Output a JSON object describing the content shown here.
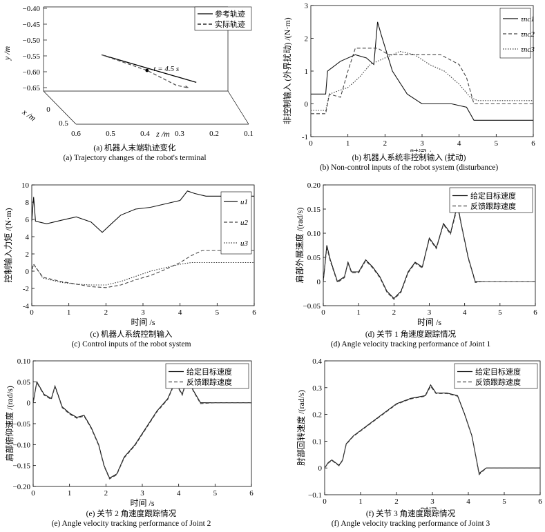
{
  "chart_data": [
    {
      "id": "a",
      "type": "line",
      "title": "",
      "caption_zh": "(a) 机器人末端轨迹变化",
      "caption_en": "(a) Trajectory changes of the robot's terminal",
      "xlabel": "x /m",
      "ylabel": "y /m",
      "zlabel": "z /m",
      "y_ticks": [
        "−0.40",
        "−0.45",
        "−0.50",
        "−0.55",
        "−0.60",
        "−0.65"
      ],
      "z_ticks": [
        "0.6",
        "0.5",
        "0.4",
        "0.3",
        "0.2",
        "0.1"
      ],
      "x_ticks": [
        "0",
        "0.5"
      ],
      "ylim": [
        -0.65,
        -0.4
      ],
      "zlim": [
        0.1,
        0.6
      ],
      "xlim": [
        0,
        0.5
      ],
      "annotation": "t = 4.5 s",
      "series": [
        {
          "name": "参考轨迹",
          "style": "solid",
          "points": [
            [
              0.05,
              -0.54,
              0.52
            ],
            [
              0.18,
              -0.61,
              0.23
            ]
          ]
        },
        {
          "name": "实际轨迹",
          "style": "dashed",
          "points": [
            [
              0.05,
              -0.54,
              0.52
            ],
            [
              0.12,
              -0.58,
              0.38
            ],
            [
              0.17,
              -0.62,
              0.29
            ],
            [
              0.2,
              -0.625,
              0.25
            ],
            [
              0.19,
              -0.62,
              0.26
            ]
          ]
        }
      ],
      "grid": false,
      "legend": "top-right"
    },
    {
      "id": "b",
      "type": "line",
      "title": "",
      "caption_zh": "(b) 机器人系统非控制输入 (扰动)",
      "caption_en": "(b) Non-control inputs of the robot system (disturbance)",
      "xlabel": "时间 /s",
      "ylabel": "非控制输入 (外界扰动) /(N·m)",
      "xlim": [
        0,
        6
      ],
      "ylim": [
        -1,
        3
      ],
      "x_ticks": [
        0,
        1,
        2,
        3,
        4,
        5,
        6
      ],
      "y_ticks": [
        -1,
        0,
        1,
        2,
        3
      ],
      "legend": "top-right",
      "grid": false,
      "series": [
        {
          "name": "τnc1",
          "style": "solid",
          "x": [
            0,
            0.4,
            0.45,
            0.8,
            1.2,
            1.5,
            1.7,
            1.8,
            1.9,
            2.2,
            2.6,
            3.0,
            3.4,
            3.8,
            4.2,
            4.4,
            5.0,
            5.5,
            6.0
          ],
          "y": [
            0.3,
            0.3,
            1.0,
            1.3,
            1.5,
            1.4,
            1.2,
            2.5,
            2.1,
            1.0,
            0.3,
            0.0,
            0.0,
            0.0,
            -0.1,
            -0.5,
            -0.5,
            -0.5,
            -0.5
          ]
        },
        {
          "name": "τnc2",
          "style": "dashed",
          "x": [
            0,
            0.4,
            0.5,
            0.8,
            1.0,
            1.2,
            1.5,
            1.8,
            2.1,
            2.5,
            3.0,
            3.5,
            4.0,
            4.2,
            4.4,
            5.0,
            5.5,
            6.0
          ],
          "y": [
            -0.3,
            -0.3,
            0.3,
            0.2,
            1.0,
            1.7,
            1.7,
            1.7,
            1.5,
            1.5,
            1.5,
            1.5,
            1.2,
            0.8,
            0.0,
            0.0,
            0.0,
            0.0
          ]
        },
        {
          "name": "τnc3",
          "style": "dotted",
          "x": [
            0,
            0.4,
            0.5,
            1.0,
            1.3,
            1.6,
            2.0,
            2.4,
            2.8,
            3.2,
            3.6,
            4.0,
            4.3,
            4.5,
            5.0,
            5.5,
            6.0
          ],
          "y": [
            -0.2,
            -0.2,
            0.3,
            0.5,
            0.8,
            1.2,
            1.4,
            1.6,
            1.5,
            1.2,
            1.0,
            0.6,
            0.2,
            0.1,
            0.1,
            0.1,
            0.1
          ]
        }
      ]
    },
    {
      "id": "c",
      "type": "line",
      "title": "",
      "caption_zh": "(c) 机器人系统控制输入",
      "caption_en": "(c) Control inputs of the robot system",
      "xlabel": "时间 /s",
      "ylabel": "控制输入力矩 /(N·m)",
      "xlim": [
        0,
        6
      ],
      "ylim": [
        -4,
        10
      ],
      "x_ticks": [
        0,
        1,
        2,
        3,
        4,
        5,
        6
      ],
      "y_ticks": [
        -4,
        -2,
        0,
        2,
        4,
        6,
        8,
        10
      ],
      "legend": "right",
      "grid": false,
      "series": [
        {
          "name": "u1",
          "style": "solid",
          "x": [
            0,
            0.05,
            0.1,
            0.4,
            0.8,
            1.2,
            1.6,
            1.9,
            2.1,
            2.4,
            2.8,
            3.2,
            3.6,
            4.0,
            4.2,
            4.4,
            4.7,
            5.0,
            5.5,
            6.0
          ],
          "y": [
            5.8,
            8.6,
            5.8,
            5.5,
            5.9,
            6.3,
            5.7,
            4.5,
            5.3,
            6.5,
            7.2,
            7.4,
            7.8,
            8.2,
            9.3,
            9.0,
            8.7,
            8.7,
            8.7,
            8.7
          ]
        },
        {
          "name": "u2",
          "style": "dashed",
          "x": [
            0,
            0.05,
            0.3,
            0.8,
            1.2,
            1.6,
            2.0,
            2.4,
            2.8,
            3.2,
            3.6,
            4.0,
            4.3,
            4.6,
            5.0,
            5.5,
            6.0
          ],
          "y": [
            0.2,
            0.8,
            -0.7,
            -1.2,
            -1.5,
            -1.8,
            -1.9,
            -1.6,
            -1.0,
            -0.5,
            0.2,
            1.0,
            1.8,
            2.4,
            2.4,
            2.4,
            2.4
          ]
        },
        {
          "name": "u3",
          "style": "dotted",
          "x": [
            0,
            0.05,
            0.3,
            0.8,
            1.2,
            1.6,
            2.0,
            2.4,
            2.8,
            3.2,
            3.6,
            4.0,
            4.3,
            4.6,
            5.0,
            5.5,
            6.0
          ],
          "y": [
            0.0,
            0.8,
            -0.8,
            -1.3,
            -1.5,
            -1.6,
            -1.6,
            -1.2,
            -0.6,
            0.0,
            0.4,
            0.8,
            1.0,
            1.0,
            1.0,
            1.0,
            1.0
          ]
        }
      ]
    },
    {
      "id": "d",
      "type": "line",
      "title": "",
      "caption_zh": "(d) 关节 1 角速度跟踪情况",
      "caption_en": "(d) Angle velocity tracking performance of Joint 1",
      "xlabel": "时间 /s",
      "ylabel": "肩部外展速度 /(rad/s)",
      "xlim": [
        0,
        6
      ],
      "ylim": [
        -0.05,
        0.2
      ],
      "x_ticks": [
        0,
        1,
        2,
        3,
        4,
        5,
        6
      ],
      "y_ticks": [
        "−0.05",
        "0",
        "0.05",
        "0.10",
        "0.15",
        "0.20"
      ],
      "legend": "top-right",
      "grid": false,
      "series": [
        {
          "name": "给定目标速度",
          "style": "solid",
          "x": [
            0,
            0.1,
            0.2,
            0.4,
            0.6,
            0.7,
            0.8,
            1.0,
            1.2,
            1.4,
            1.6,
            1.8,
            2.0,
            2.2,
            2.4,
            2.6,
            2.8,
            3.0,
            3.2,
            3.4,
            3.6,
            3.8,
            3.9,
            4.1,
            4.3,
            4.5,
            5.0,
            6.0
          ],
          "y": [
            0.0,
            0.075,
            0.045,
            0.0,
            0.01,
            0.04,
            0.02,
            0.02,
            0.045,
            0.03,
            0.01,
            -0.02,
            -0.035,
            -0.02,
            0.02,
            0.04,
            0.03,
            0.09,
            0.07,
            0.12,
            0.1,
            0.16,
            0.12,
            0.05,
            0.0,
            0.0,
            0.0,
            0.0
          ]
        },
        {
          "name": "反馈跟踪速度",
          "style": "dashed",
          "x": [
            0,
            0.1,
            0.2,
            0.4,
            0.6,
            0.7,
            0.8,
            1.0,
            1.2,
            1.4,
            1.6,
            1.8,
            2.0,
            2.2,
            2.4,
            2.6,
            2.8,
            3.0,
            3.2,
            3.4,
            3.6,
            3.8,
            3.9,
            4.1,
            4.3,
            4.5,
            5.0,
            6.0
          ],
          "y": [
            0.0,
            0.07,
            0.042,
            -0.002,
            0.008,
            0.038,
            0.018,
            0.018,
            0.043,
            0.028,
            0.008,
            -0.022,
            -0.037,
            -0.022,
            0.018,
            0.038,
            0.028,
            0.088,
            0.068,
            0.118,
            0.098,
            0.155,
            0.118,
            0.048,
            -0.002,
            0.0,
            0.0,
            0.0
          ]
        }
      ]
    },
    {
      "id": "e",
      "type": "line",
      "title": "",
      "caption_zh": "(e) 关节 2 角速度跟踪情况",
      "caption_en": "(e) Angle velocity tracking performance of Joint 2",
      "xlabel": "时间 /s",
      "ylabel": "肩部俯仰速度 /(rad/s)",
      "xlim": [
        0,
        6
      ],
      "ylim": [
        -0.2,
        0.1
      ],
      "x_ticks": [
        0,
        1,
        2,
        3,
        4,
        5,
        6
      ],
      "y_ticks": [
        "−0.20",
        "−0.15",
        "−0.10",
        "−0.05",
        "0",
        "0.05",
        "0.10"
      ],
      "legend": "top-right",
      "grid": false,
      "series": [
        {
          "name": "给定目标速度",
          "style": "solid",
          "x": [
            0,
            0.1,
            0.3,
            0.5,
            0.6,
            0.7,
            0.8,
            1.0,
            1.2,
            1.4,
            1.6,
            1.8,
            1.95,
            2.1,
            2.3,
            2.5,
            2.8,
            3.1,
            3.4,
            3.7,
            3.9,
            4.1,
            4.25,
            4.4,
            4.6,
            5.0,
            6.0
          ],
          "y": [
            0.0,
            0.05,
            0.02,
            0.01,
            0.04,
            0.015,
            -0.01,
            -0.025,
            -0.035,
            -0.03,
            -0.06,
            -0.1,
            -0.15,
            -0.18,
            -0.17,
            -0.13,
            -0.1,
            -0.06,
            -0.02,
            0.01,
            0.05,
            0.02,
            0.065,
            0.03,
            0.0,
            0.0,
            0.0
          ]
        },
        {
          "name": "反馈跟踪速度",
          "style": "dashed",
          "x": [
            0,
            0.1,
            0.3,
            0.5,
            0.6,
            0.7,
            0.8,
            1.0,
            1.2,
            1.4,
            1.6,
            1.8,
            1.95,
            2.1,
            2.3,
            2.5,
            2.8,
            3.1,
            3.4,
            3.7,
            3.9,
            4.1,
            4.25,
            4.4,
            4.6,
            5.0,
            6.0
          ],
          "y": [
            0.0,
            0.048,
            0.018,
            0.008,
            0.038,
            0.013,
            -0.012,
            -0.027,
            -0.037,
            -0.032,
            -0.062,
            -0.102,
            -0.152,
            -0.182,
            -0.172,
            -0.132,
            -0.102,
            -0.062,
            -0.022,
            0.008,
            0.048,
            0.018,
            0.062,
            0.028,
            -0.002,
            0.0,
            0.0
          ]
        }
      ]
    },
    {
      "id": "f",
      "type": "line",
      "title": "",
      "caption_zh": "(f) 关节 3 角速度跟踪情况",
      "caption_en": "(f) Angle velocity tracking performance of Joint 3",
      "xlabel": "时间 /s",
      "ylabel": "肘部回转速度 /(rad/s)",
      "xlim": [
        0,
        6
      ],
      "ylim": [
        -0.1,
        0.4
      ],
      "x_ticks": [
        0,
        1,
        2,
        3,
        4,
        5,
        6
      ],
      "y_ticks": [
        "−0.1",
        "0",
        "0.1",
        "0.2",
        "0.3",
        "0.4"
      ],
      "legend": "top-right",
      "grid": false,
      "series": [
        {
          "name": "给定目标速度",
          "style": "solid",
          "x": [
            0,
            0.1,
            0.2,
            0.4,
            0.5,
            0.6,
            0.8,
            1.0,
            1.3,
            1.6,
            2.0,
            2.4,
            2.8,
            2.95,
            3.1,
            3.4,
            3.7,
            3.9,
            4.1,
            4.2,
            4.3,
            4.5,
            5.0,
            6.0
          ],
          "y": [
            0.0,
            0.02,
            0.03,
            0.01,
            0.03,
            0.09,
            0.12,
            0.14,
            0.17,
            0.2,
            0.24,
            0.26,
            0.27,
            0.31,
            0.28,
            0.28,
            0.27,
            0.2,
            0.12,
            0.05,
            -0.02,
            0.0,
            0.0,
            0.0
          ]
        },
        {
          "name": "反馈跟踪速度",
          "style": "dashed",
          "x": [
            0,
            0.1,
            0.2,
            0.4,
            0.5,
            0.6,
            0.8,
            1.0,
            1.3,
            1.6,
            2.0,
            2.4,
            2.8,
            2.95,
            3.1,
            3.4,
            3.7,
            3.9,
            4.1,
            4.2,
            4.3,
            4.5,
            5.0,
            6.0
          ],
          "y": [
            0.0,
            0.018,
            0.028,
            0.008,
            0.028,
            0.088,
            0.118,
            0.138,
            0.168,
            0.198,
            0.238,
            0.258,
            0.268,
            0.305,
            0.278,
            0.278,
            0.268,
            0.198,
            0.118,
            0.048,
            -0.025,
            0.0,
            0.0,
            0.0
          ]
        }
      ]
    }
  ]
}
